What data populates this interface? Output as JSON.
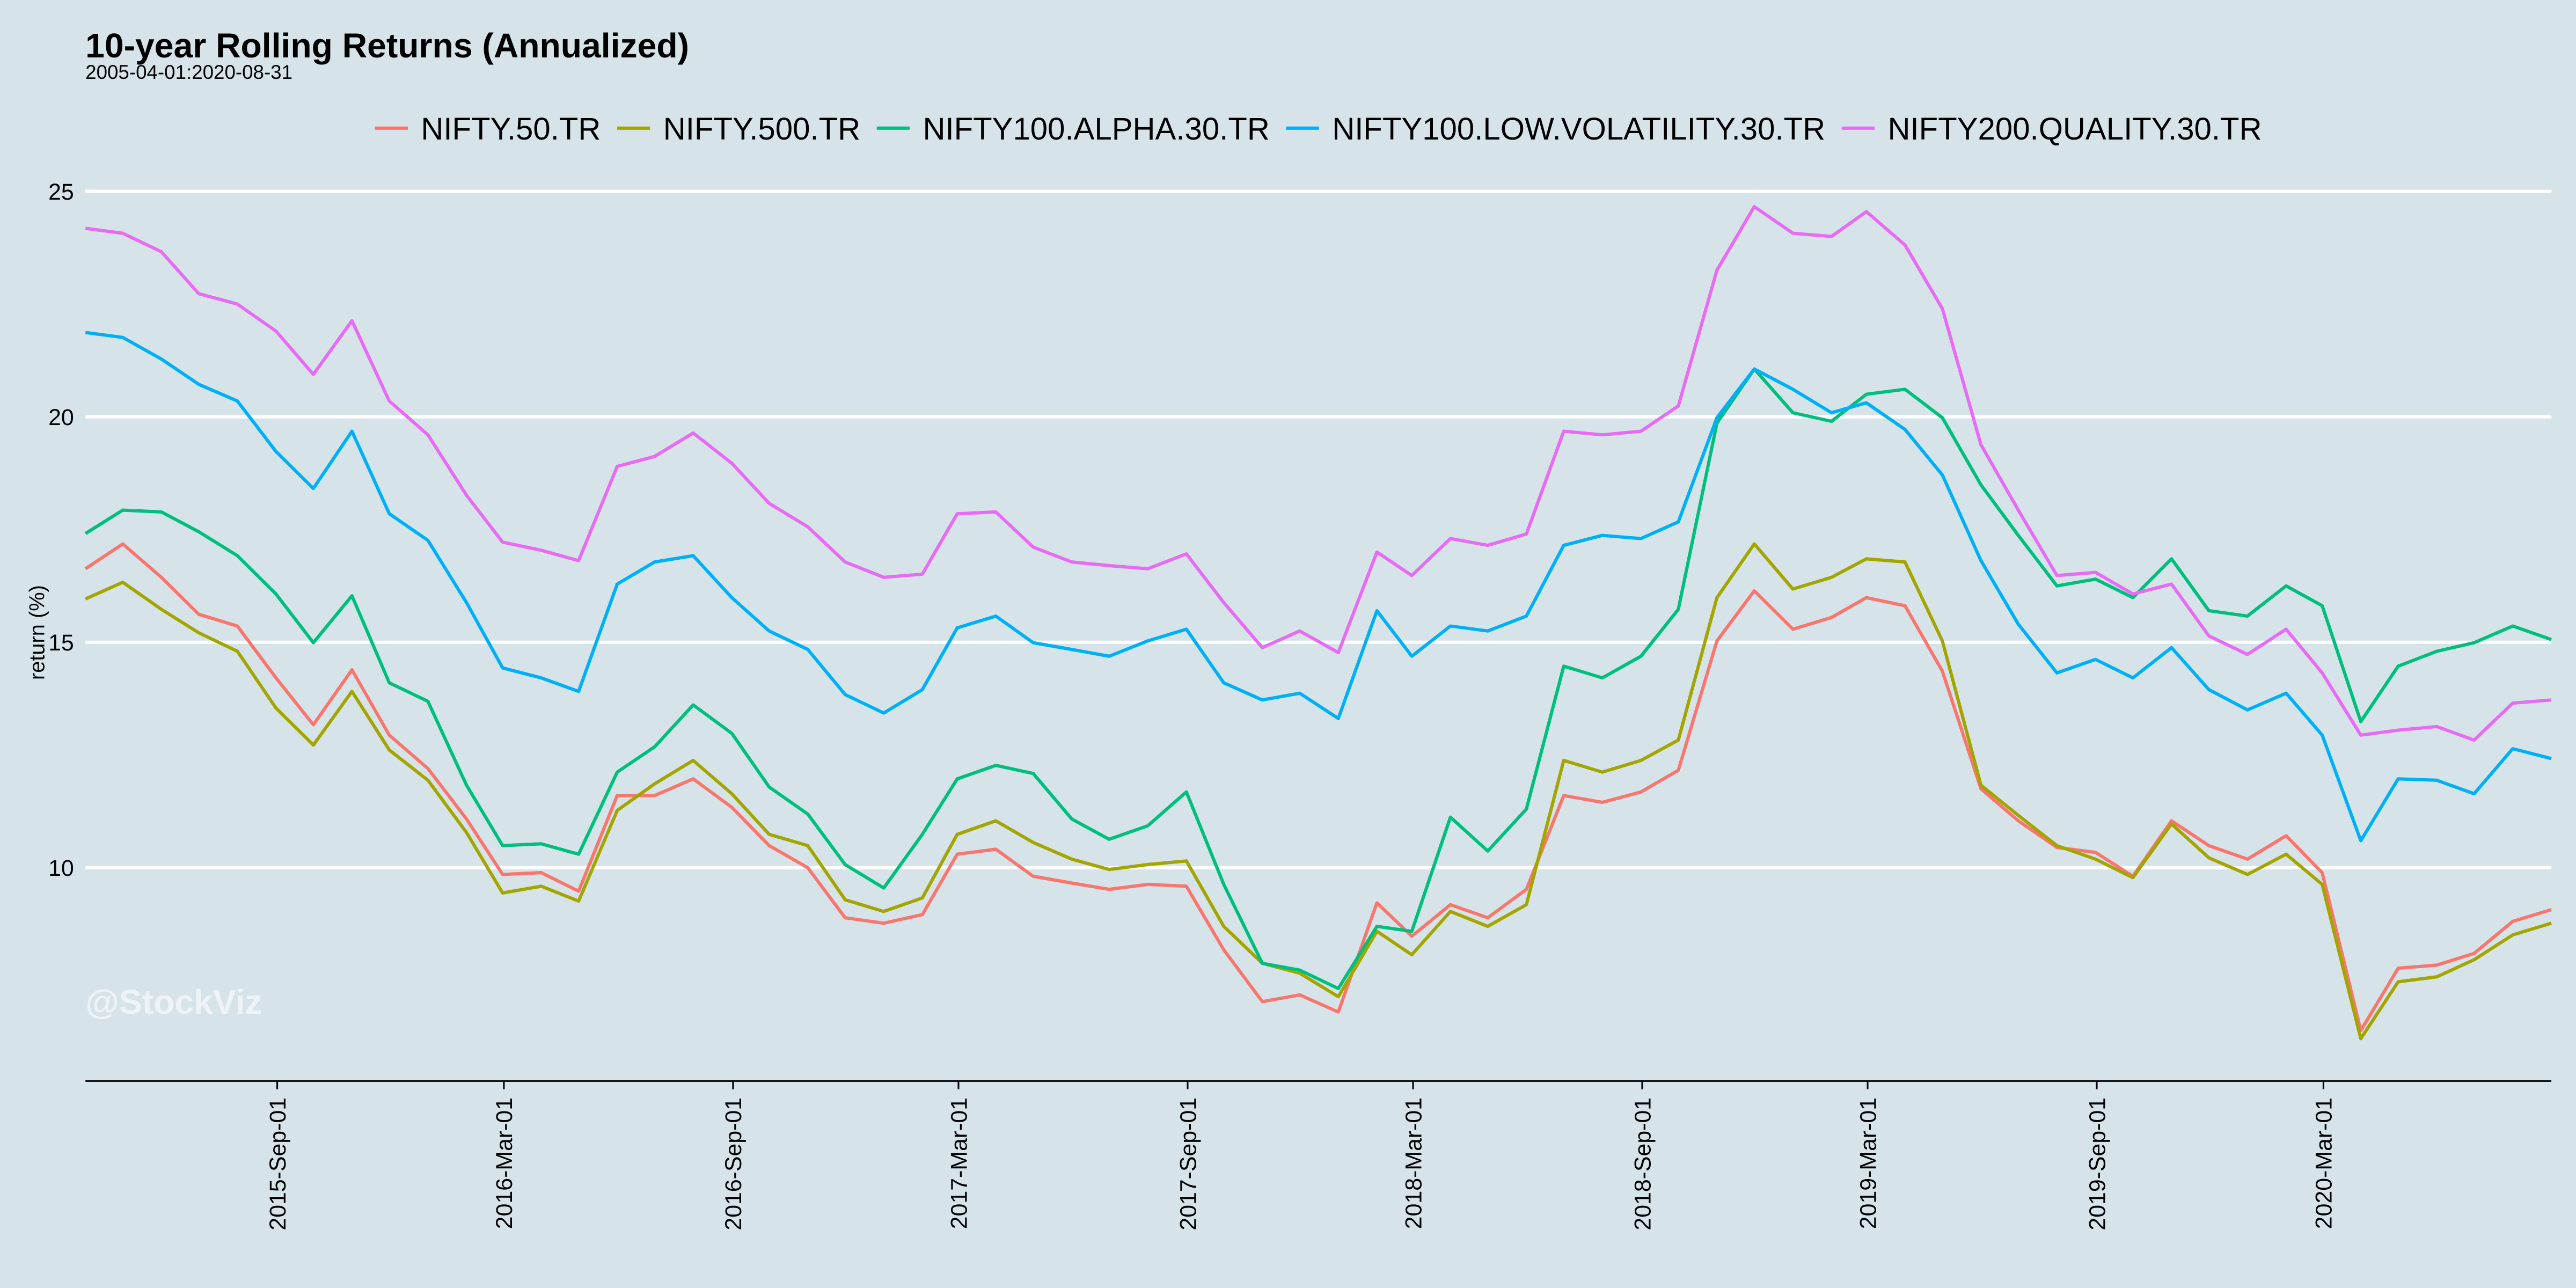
{
  "chart_data": {
    "type": "line",
    "title": "10-year Rolling Returns (Annualized)",
    "subtitle": "2005-04-01:2020-08-31",
    "y_label": "return (%)",
    "annotation": "@StockViz",
    "x": [
      "2015-03-31",
      "2015-04-30",
      "2015-05-31",
      "2015-06-30",
      "2015-07-31",
      "2015-08-31",
      "2015-09-30",
      "2015-10-31",
      "2015-11-30",
      "2015-12-31",
      "2016-01-31",
      "2016-02-29",
      "2016-03-31",
      "2016-04-30",
      "2016-05-31",
      "2016-06-30",
      "2016-07-31",
      "2016-08-31",
      "2016-09-30",
      "2016-10-31",
      "2016-11-30",
      "2016-12-31",
      "2017-01-31",
      "2017-02-28",
      "2017-03-31",
      "2017-04-30",
      "2017-05-31",
      "2017-06-30",
      "2017-07-31",
      "2017-08-31",
      "2017-09-30",
      "2017-10-31",
      "2017-11-30",
      "2017-12-31",
      "2018-01-31",
      "2018-02-28",
      "2018-03-31",
      "2018-04-30",
      "2018-05-31",
      "2018-06-30",
      "2018-07-31",
      "2018-08-31",
      "2018-09-30",
      "2018-10-31",
      "2018-11-30",
      "2018-12-31",
      "2019-01-31",
      "2019-02-28",
      "2019-03-31",
      "2019-04-30",
      "2019-05-31",
      "2019-06-30",
      "2019-07-31",
      "2019-08-31",
      "2019-09-30",
      "2019-10-31",
      "2019-11-30",
      "2019-12-31",
      "2020-01-31",
      "2020-02-29",
      "2020-03-31",
      "2020-04-30",
      "2020-05-31",
      "2020-06-30",
      "2020-07-31",
      "2020-08-31"
    ],
    "series": [
      {
        "name": "NIFTY.50.TR",
        "color": "#F8766D",
        "values": [
          16.63,
          17.18,
          16.44,
          15.62,
          15.36,
          14.21,
          13.17,
          14.39,
          12.94,
          12.2,
          11.08,
          9.85,
          9.89,
          9.48,
          11.6,
          11.6,
          11.97,
          11.34,
          10.49,
          10.0,
          8.89,
          8.77,
          8.96,
          10.3,
          10.41,
          9.81,
          9.66,
          9.52,
          9.63,
          9.59,
          8.18,
          7.03,
          7.18,
          6.8,
          9.22,
          8.48,
          9.18,
          8.89,
          9.52,
          11.6,
          11.45,
          11.68,
          12.16,
          15.03,
          16.14,
          15.29,
          15.55,
          15.99,
          15.81,
          14.36,
          11.75,
          11.04,
          10.45,
          10.34,
          9.81,
          11.04,
          10.49,
          10.19,
          10.71,
          9.89,
          6.39,
          7.77,
          7.84,
          8.1,
          8.81,
          9.07
        ]
      },
      {
        "name": "NIFTY.500.TR",
        "color": "#A3A500",
        "values": [
          15.96,
          16.33,
          15.73,
          15.21,
          14.8,
          13.54,
          12.72,
          13.91,
          12.61,
          11.94,
          10.78,
          9.44,
          9.59,
          9.26,
          11.27,
          11.86,
          12.38,
          11.64,
          10.74,
          10.49,
          9.29,
          9.03,
          9.33,
          10.74,
          11.04,
          10.56,
          10.19,
          9.96,
          10.07,
          10.15,
          8.7,
          7.88,
          7.66,
          7.14,
          8.59,
          8.07,
          9.03,
          8.7,
          9.18,
          12.38,
          12.12,
          12.38,
          12.83,
          15.99,
          17.18,
          16.18,
          16.44,
          16.85,
          16.78,
          15.03,
          11.83,
          11.16,
          10.49,
          10.19,
          9.78,
          10.97,
          10.22,
          9.85,
          10.3,
          9.63,
          6.21,
          7.47,
          7.58,
          7.96,
          8.51,
          8.77
        ]
      },
      {
        "name": "NIFTY100.ALPHA.30.TR",
        "color": "#00BF7D",
        "values": [
          17.41,
          17.93,
          17.89,
          17.45,
          16.92,
          16.07,
          14.99,
          16.03,
          14.1,
          13.69,
          11.83,
          10.49,
          10.53,
          10.3,
          12.12,
          12.68,
          13.61,
          12.98,
          11.79,
          11.19,
          10.07,
          9.55,
          10.74,
          11.97,
          12.27,
          12.09,
          11.08,
          10.63,
          10.93,
          11.68,
          9.63,
          7.88,
          7.73,
          7.32,
          8.7,
          8.59,
          11.12,
          10.37,
          11.3,
          14.47,
          14.21,
          14.69,
          15.73,
          19.86,
          21.06,
          20.09,
          19.9,
          20.5,
          20.61,
          19.98,
          18.49,
          17.37,
          16.25,
          16.4,
          15.99,
          16.85,
          15.7,
          15.58,
          16.25,
          15.81,
          13.24,
          14.47,
          14.8,
          14.99,
          15.36,
          15.06
        ]
      },
      {
        "name": "NIFTY100.LOW.VOLATILITY.30.TR",
        "color": "#00B0F6",
        "values": [
          21.87,
          21.76,
          21.28,
          20.72,
          20.35,
          19.23,
          18.41,
          19.68,
          17.85,
          17.26,
          15.88,
          14.43,
          14.21,
          13.91,
          16.29,
          16.78,
          16.92,
          15.99,
          15.25,
          14.84,
          13.84,
          13.43,
          13.95,
          15.32,
          15.58,
          14.99,
          14.84,
          14.69,
          15.03,
          15.29,
          14.1,
          13.72,
          13.87,
          13.31,
          15.7,
          14.69,
          15.36,
          15.25,
          15.58,
          17.15,
          17.37,
          17.3,
          17.67,
          19.98,
          21.06,
          20.61,
          20.09,
          20.31,
          19.72,
          18.71,
          16.81,
          15.4,
          14.32,
          14.62,
          14.21,
          14.88,
          13.95,
          13.5,
          13.87,
          12.94,
          10.6,
          11.97,
          11.94,
          11.64,
          12.64,
          12.42
        ]
      },
      {
        "name": "NIFTY200.QUALITY.30.TR",
        "color": "#E76BF3",
        "values": [
          24.18,
          24.07,
          23.66,
          22.73,
          22.5,
          21.9,
          20.94,
          22.13,
          20.35,
          19.6,
          18.26,
          17.22,
          17.04,
          16.81,
          18.9,
          19.12,
          19.64,
          18.97,
          18.08,
          17.56,
          16.78,
          16.44,
          16.51,
          17.85,
          17.89,
          17.11,
          16.78,
          16.7,
          16.63,
          16.96,
          15.88,
          14.88,
          15.25,
          14.77,
          17.0,
          16.48,
          17.3,
          17.15,
          17.4,
          19.68,
          19.6,
          19.68,
          20.24,
          23.25,
          24.66,
          24.07,
          24.0,
          24.55,
          23.81,
          22.4,
          19.38,
          17.93,
          16.48,
          16.55,
          16.07,
          16.29,
          15.14,
          14.73,
          15.29,
          14.32,
          12.94,
          13.05,
          13.13,
          12.83,
          13.65,
          13.72
        ]
      }
    ],
    "xlim": [
      "2015-03-31",
      "2020-08-31"
    ],
    "xticks": [
      {
        "value": "2015-09-01",
        "label": "2015-Sep-01"
      },
      {
        "value": "2016-03-01",
        "label": "2016-Mar-01"
      },
      {
        "value": "2016-09-01",
        "label": "2016-Sep-01"
      },
      {
        "value": "2017-03-01",
        "label": "2017-Mar-01"
      },
      {
        "value": "2017-09-01",
        "label": "2017-Sep-01"
      },
      {
        "value": "2018-03-01",
        "label": "2018-Mar-01"
      },
      {
        "value": "2018-09-01",
        "label": "2018-Sep-01"
      },
      {
        "value": "2019-03-01",
        "label": "2019-Mar-01"
      },
      {
        "value": "2019-09-01",
        "label": "2019-Sep-01"
      },
      {
        "value": "2020-03-01",
        "label": "2020-Mar-01"
      }
    ],
    "ylim": [
      5.27,
      25.6
    ],
    "yticks": [
      10,
      15,
      20,
      25
    ],
    "grid": true,
    "legend": "top"
  }
}
